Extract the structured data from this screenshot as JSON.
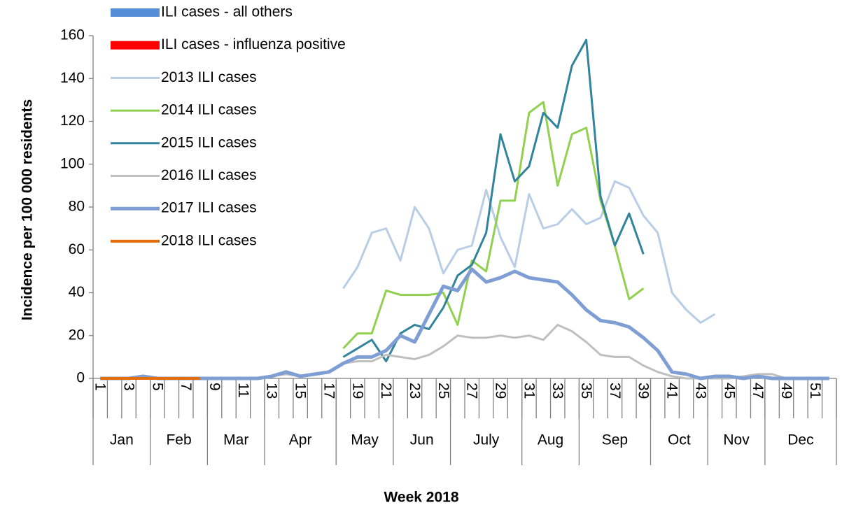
{
  "chart_data": {
    "type": "line",
    "x_title": "Week 2018",
    "y_title": "Incidence per 100 000 residents",
    "categories": [
      1,
      null,
      3,
      null,
      5,
      null,
      7,
      null,
      9,
      null,
      11,
      null,
      13,
      null,
      15,
      null,
      17,
      null,
      19,
      null,
      21,
      null,
      23,
      null,
      25,
      null,
      27,
      null,
      29,
      null,
      31,
      null,
      33,
      null,
      35,
      null,
      37,
      null,
      39,
      null,
      41,
      null,
      43,
      null,
      45,
      null,
      47,
      null,
      49,
      null,
      51,
      null
    ],
    "month_groups": [
      {
        "label": "Jan",
        "weeks": 4
      },
      {
        "label": "Feb",
        "weeks": 4
      },
      {
        "label": "Mar",
        "weeks": 4
      },
      {
        "label": "Apr",
        "weeks": 5
      },
      {
        "label": "May",
        "weeks": 4
      },
      {
        "label": "Jun",
        "weeks": 4
      },
      {
        "label": "July",
        "weeks": 5
      },
      {
        "label": "Aug",
        "weeks": 4
      },
      {
        "label": "Sep",
        "weeks": 5
      },
      {
        "label": "Oct",
        "weeks": 4
      },
      {
        "label": "Nov",
        "weeks": 4
      },
      {
        "label": "Dec",
        "weeks": 5
      }
    ],
    "ylim": [
      0,
      160
    ],
    "yticks": [
      0,
      20,
      40,
      60,
      80,
      100,
      120,
      140,
      160
    ],
    "series": [
      {
        "name": "ILI cases - all others",
        "kind": "bar",
        "color": "#558ed5",
        "values": [
          0,
          0,
          0,
          0,
          0,
          0,
          0,
          0,
          null,
          null,
          null,
          null,
          null,
          null,
          null,
          null,
          null,
          null,
          null,
          null,
          null,
          null,
          null,
          null,
          null,
          null,
          null,
          null,
          null,
          null,
          null,
          null,
          null,
          null,
          null,
          null,
          null,
          null,
          null,
          null,
          null,
          null,
          null,
          null,
          null,
          null,
          null,
          null,
          null,
          null,
          null,
          null
        ]
      },
      {
        "name": "ILI cases - influenza positive",
        "kind": "bar",
        "color": "#ff0000",
        "values": [
          0,
          0,
          0,
          0,
          0,
          0,
          0,
          0,
          null,
          null,
          null,
          null,
          null,
          null,
          null,
          null,
          null,
          null,
          null,
          null,
          null,
          null,
          null,
          null,
          null,
          null,
          null,
          null,
          null,
          null,
          null,
          null,
          null,
          null,
          null,
          null,
          null,
          null,
          null,
          null,
          null,
          null,
          null,
          null,
          null,
          null,
          null,
          null,
          null,
          null,
          null,
          null
        ]
      },
      {
        "name": "2013 ILI cases",
        "kind": "line",
        "color": "#b9cde5",
        "width": 3,
        "values": [
          null,
          null,
          null,
          null,
          null,
          null,
          null,
          null,
          null,
          null,
          null,
          null,
          null,
          null,
          null,
          null,
          null,
          42,
          52,
          68,
          70,
          55,
          80,
          70,
          49,
          60,
          62,
          88,
          66,
          52,
          86,
          70,
          72,
          79,
          72,
          75,
          92,
          89,
          76,
          68,
          40,
          32,
          26,
          30,
          null,
          null,
          null,
          null,
          null,
          null,
          null,
          null
        ]
      },
      {
        "name": "2014 ILI cases",
        "kind": "line",
        "color": "#92d050",
        "width": 3,
        "values": [
          null,
          null,
          null,
          null,
          null,
          null,
          null,
          null,
          null,
          null,
          null,
          null,
          null,
          null,
          null,
          null,
          null,
          14,
          21,
          21,
          41,
          39,
          39,
          39,
          40,
          25,
          55,
          50,
          83,
          83,
          124,
          129,
          90,
          114,
          117,
          83,
          62,
          37,
          42,
          null,
          null,
          null,
          null,
          null,
          null,
          null,
          null,
          null,
          null,
          null,
          null,
          null
        ]
      },
      {
        "name": "2015 ILI cases",
        "kind": "line",
        "color": "#31849b",
        "width": 3,
        "values": [
          null,
          null,
          null,
          null,
          null,
          null,
          null,
          null,
          null,
          null,
          null,
          null,
          null,
          null,
          null,
          null,
          null,
          10,
          14,
          18,
          8,
          21,
          25,
          23,
          33,
          48,
          53,
          68,
          114,
          92,
          99,
          124,
          117,
          146,
          158,
          85,
          62,
          77,
          58,
          null,
          null,
          null,
          null,
          null,
          null,
          null,
          null,
          null,
          null,
          null,
          null,
          null
        ]
      },
      {
        "name": "2016 ILI cases",
        "kind": "line",
        "color": "#bfbfbf",
        "width": 3,
        "values": [
          0,
          0,
          0,
          1,
          0,
          0,
          0,
          0,
          0,
          0,
          0,
          0,
          1,
          2,
          1,
          2,
          3,
          7,
          8,
          8,
          11,
          10,
          9,
          11,
          15,
          20,
          19,
          19,
          20,
          19,
          20,
          18,
          25,
          22,
          17,
          11,
          10,
          10,
          6,
          3,
          1,
          0,
          0,
          0,
          0,
          1,
          2,
          2,
          0,
          0,
          0,
          0
        ]
      },
      {
        "name": "2017 ILI cases",
        "kind": "line",
        "color": "#7f9fd4",
        "width": 5,
        "values": [
          0,
          0,
          0,
          1,
          0,
          0,
          0,
          0,
          0,
          0,
          0,
          0,
          1,
          3,
          1,
          2,
          3,
          7,
          10,
          10,
          13,
          20,
          17,
          30,
          43,
          41,
          51,
          45,
          47,
          50,
          47,
          46,
          45,
          39,
          32,
          27,
          26,
          24,
          19,
          13,
          3,
          2,
          0,
          1,
          1,
          0,
          1,
          0,
          0,
          0,
          0,
          0
        ]
      },
      {
        "name": "2018 ILI cases",
        "kind": "line",
        "color": "#e46c0a",
        "width": 4,
        "values": [
          0,
          0,
          0,
          0,
          0,
          0,
          0,
          0,
          null,
          null,
          null,
          null,
          null,
          null,
          null,
          null,
          null,
          null,
          null,
          null,
          null,
          null,
          null,
          null,
          null,
          null,
          null,
          null,
          null,
          null,
          null,
          null,
          null,
          null,
          null,
          null,
          null,
          null,
          null,
          null,
          null,
          null,
          null,
          null,
          null,
          null,
          null,
          null,
          null,
          null,
          null,
          null
        ]
      }
    ]
  }
}
